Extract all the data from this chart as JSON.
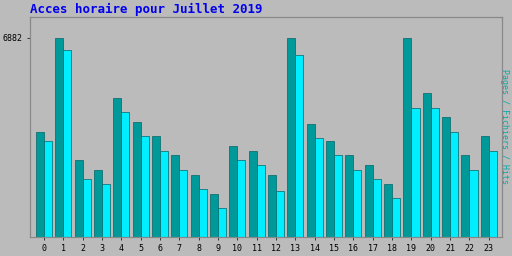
{
  "title": "Acces horaire pour Juillet 2019",
  "title_color": "#0000ee",
  "title_fontsize": 9,
  "ylabel": "Pages / Fichiers / Hits",
  "ylabel_color": "#00aaaa",
  "ylabel_fontsize": 6,
  "background_color": "#bbbbbb",
  "plot_bg_color": "#bbbbbb",
  "bar_color_pages": "#009999",
  "bar_color_hits": "#00eeff",
  "bar_edge_color": "#006666",
  "hours": [
    0,
    1,
    2,
    3,
    4,
    5,
    6,
    7,
    8,
    9,
    10,
    11,
    12,
    13,
    14,
    15,
    16,
    17,
    18,
    19,
    20,
    21,
    22,
    23
  ],
  "pages_values": [
    5900,
    6882,
    5600,
    5500,
    6250,
    6000,
    5850,
    5650,
    5450,
    5250,
    5750,
    5700,
    5450,
    6882,
    5980,
    5800,
    5650,
    5550,
    5350,
    6882,
    6300,
    6050,
    5650,
    5850
  ],
  "hits_values": [
    5800,
    6750,
    5400,
    5350,
    6100,
    5850,
    5700,
    5500,
    5300,
    5100,
    5600,
    5550,
    5280,
    6700,
    5830,
    5650,
    5500,
    5400,
    5200,
    6150,
    6150,
    5900,
    5500,
    5700
  ],
  "ylim_min": 4800,
  "ylim_max": 7100,
  "ytick_value": 6882,
  "bar_width": 0.42,
  "font_family": "monospace",
  "border_color": "#888888"
}
